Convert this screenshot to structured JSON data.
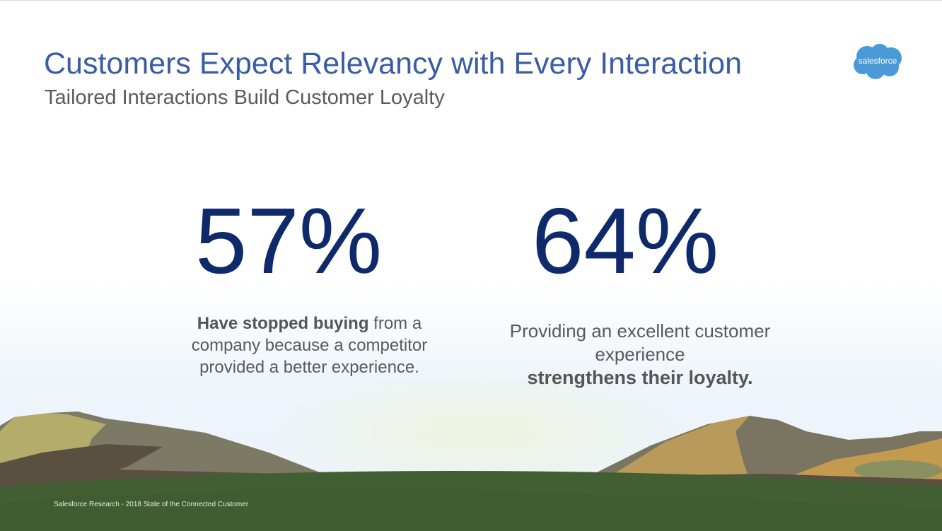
{
  "header": {
    "title": "Customers Expect Relevancy with Every Interaction",
    "subtitle": "Tailored Interactions Build Customer Loyalty"
  },
  "logo": {
    "text": "salesforce",
    "icon": "salesforce-cloud-logo",
    "color": "#4a9ad8"
  },
  "stats": [
    {
      "value": "57%",
      "desc_bold": "Have stopped buying",
      "desc_rest": " from a company because a competitor provided a better experience."
    },
    {
      "value": "64%",
      "desc_pre": "Providing an excellent customer experience ",
      "desc_bold": "strengthens their loyalty."
    }
  ],
  "footer": {
    "source": "Salesforce Research - 2018 State of the Connected Customer"
  },
  "colors": {
    "title": "#3a5ca6",
    "stat": "#0e2a6b",
    "grass": "#425f33"
  }
}
